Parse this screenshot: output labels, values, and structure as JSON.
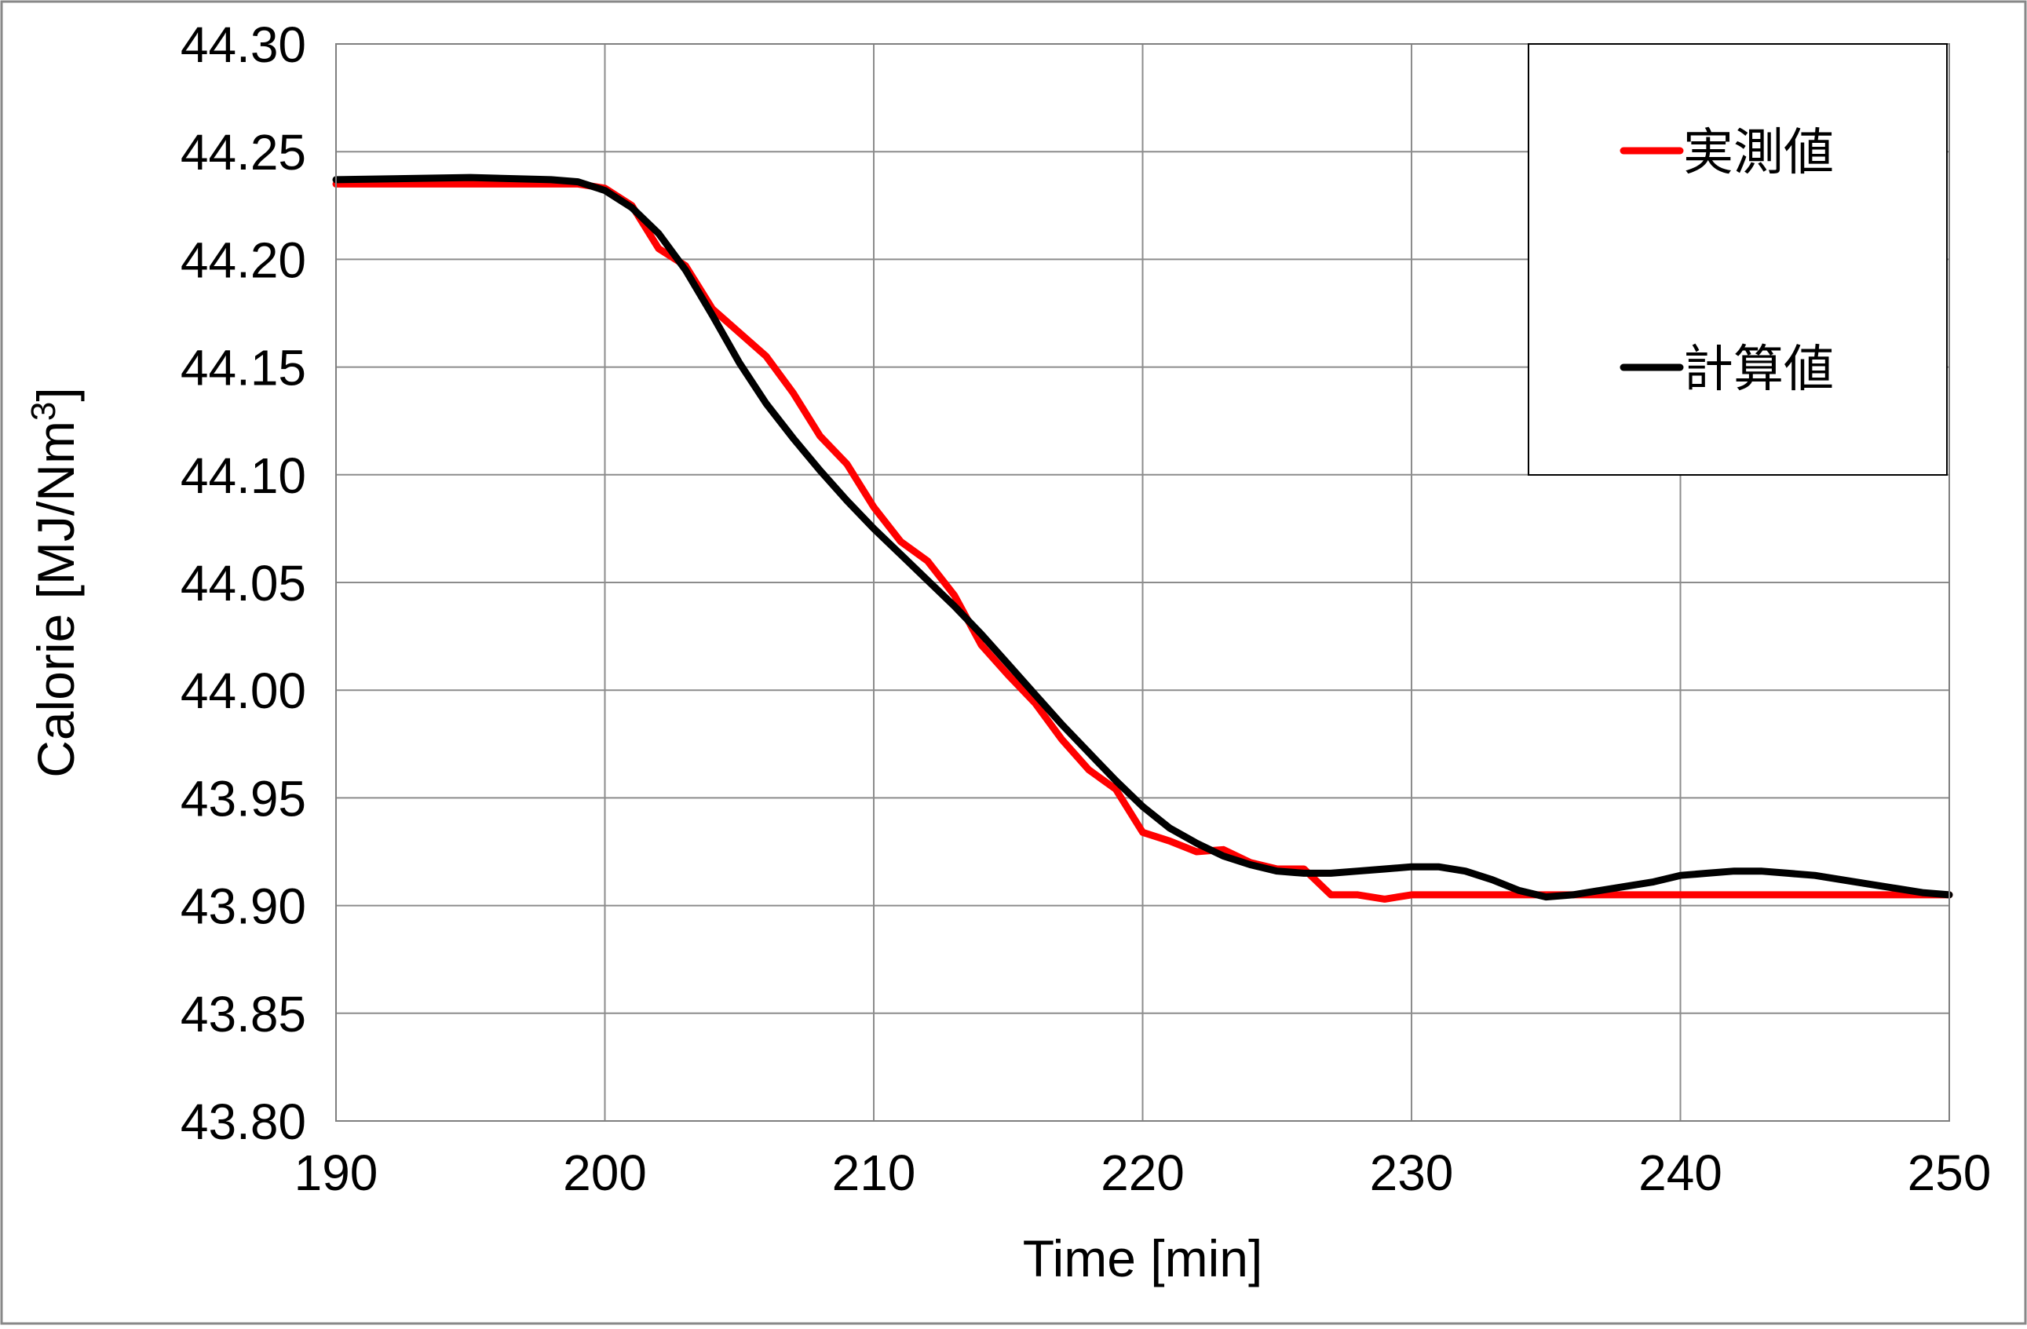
{
  "chart_data": {
    "type": "line",
    "title": "",
    "xlabel": "Time [min]",
    "ylabel": "Calorie [MJ/Nm",
    "ylabel_superscript": "3",
    "ylabel_suffix": "]",
    "xlim": [
      190,
      250
    ],
    "ylim": [
      43.8,
      44.3
    ],
    "x_ticks": [
      190,
      200,
      210,
      220,
      230,
      240,
      250
    ],
    "x_tick_labels": [
      "190",
      "200",
      "210",
      "220",
      "230",
      "240",
      "250"
    ],
    "y_ticks": [
      43.8,
      43.85,
      43.9,
      43.95,
      44.0,
      44.05,
      44.1,
      44.15,
      44.2,
      44.25,
      44.3
    ],
    "y_tick_labels": [
      "43.80",
      "43.85",
      "43.90",
      "43.95",
      "44.00",
      "44.05",
      "44.10",
      "44.15",
      "44.20",
      "44.25",
      "44.30"
    ],
    "grid": true,
    "legend_position": "top-right",
    "series": [
      {
        "name": "実測値",
        "color": "#ff0000",
        "x": [
          190,
          195,
          199,
          200,
          201,
          202,
          203,
          204,
          205,
          206,
          207,
          208,
          209,
          210,
          211,
          212,
          213,
          214,
          215,
          216,
          217,
          218,
          219,
          220,
          221,
          222,
          223,
          224,
          225,
          226,
          227,
          228,
          229,
          230,
          235,
          240,
          245,
          250
        ],
        "y": [
          44.235,
          44.235,
          44.235,
          44.233,
          44.225,
          44.205,
          44.197,
          44.177,
          44.166,
          44.155,
          44.138,
          44.118,
          44.105,
          44.085,
          44.069,
          44.06,
          44.044,
          44.021,
          44.007,
          43.994,
          43.977,
          43.963,
          43.954,
          43.934,
          43.93,
          43.925,
          43.926,
          43.92,
          43.917,
          43.917,
          43.905,
          43.905,
          43.903,
          43.905,
          43.905,
          43.905,
          43.905,
          43.905
        ]
      },
      {
        "name": "計算値",
        "color": "#000000",
        "x": [
          190,
          195,
          198,
          199,
          200,
          201,
          202,
          203,
          204,
          205,
          206,
          207,
          208,
          209,
          210,
          211,
          212,
          213,
          214,
          215,
          216,
          217,
          218,
          219,
          220,
          221,
          222,
          223,
          224,
          225,
          226,
          227,
          228,
          229,
          230,
          231,
          232,
          233,
          234,
          235,
          236,
          237,
          238,
          239,
          240,
          241,
          242,
          243,
          244,
          245,
          246,
          247,
          248,
          249,
          250
        ],
        "y": [
          44.237,
          44.238,
          44.237,
          44.236,
          44.232,
          44.224,
          44.212,
          44.195,
          44.174,
          44.152,
          44.133,
          44.117,
          44.102,
          44.088,
          44.075,
          44.063,
          44.051,
          44.039,
          44.026,
          44.012,
          43.998,
          43.984,
          43.971,
          43.958,
          43.946,
          43.936,
          43.929,
          43.923,
          43.919,
          43.916,
          43.915,
          43.915,
          43.916,
          43.917,
          43.918,
          43.918,
          43.916,
          43.912,
          43.907,
          43.904,
          43.905,
          43.907,
          43.909,
          43.911,
          43.914,
          43.915,
          43.916,
          43.916,
          43.915,
          43.914,
          43.912,
          43.91,
          43.908,
          43.906,
          43.905
        ]
      }
    ]
  }
}
